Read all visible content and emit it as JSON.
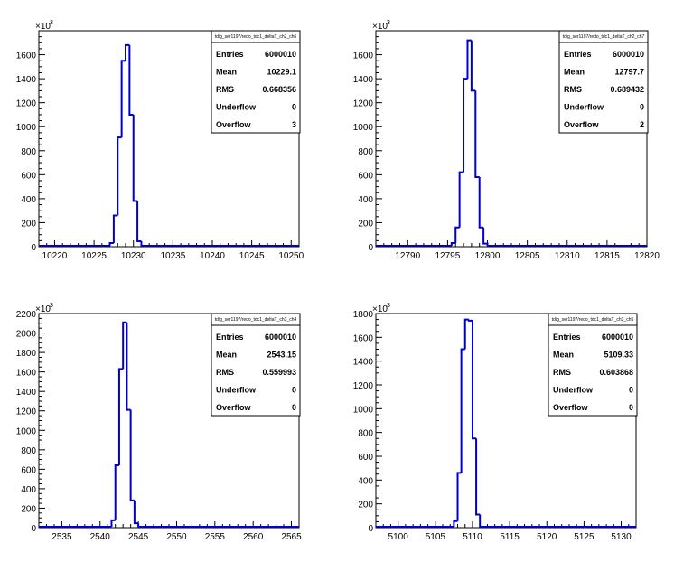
{
  "chart_data": [
    {
      "type": "histogram",
      "stats_title": "tdig_ser1197/redo_tdc1_deltaT_ch2_ch6",
      "y_exponent": "×10",
      "y_exponent_power": "3",
      "xlim": [
        10218,
        10251
      ],
      "ylim": [
        0,
        1800
      ],
      "xticks": [
        10220,
        10225,
        10230,
        10235,
        10240,
        10245,
        10250
      ],
      "xtick_labels": [
        "10220",
        "10225",
        "10230",
        "10235",
        "10240",
        "10245",
        "10250"
      ],
      "yticks": [
        0,
        200,
        400,
        600,
        800,
        1000,
        1200,
        1400,
        1600
      ],
      "ytick_labels": [
        "0",
        "200",
        "400",
        "600",
        "800",
        "1000",
        "1200",
        "1400",
        "1600"
      ],
      "bin_width": 0.5,
      "bins": [
        {
          "x": 10227.0,
          "y": 30
        },
        {
          "x": 10227.5,
          "y": 260
        },
        {
          "x": 10228.0,
          "y": 910
        },
        {
          "x": 10228.5,
          "y": 1550
        },
        {
          "x": 10229.0,
          "y": 1680
        },
        {
          "x": 10229.5,
          "y": 1100
        },
        {
          "x": 10230.0,
          "y": 380
        },
        {
          "x": 10230.5,
          "y": 45
        },
        {
          "x": 10231.0,
          "y": 5
        }
      ],
      "stats": [
        {
          "label": "Entries",
          "value": "6000010"
        },
        {
          "label": "Mean",
          "value": "10229.1"
        },
        {
          "label": "RMS",
          "value": "0.668356"
        },
        {
          "label": "Underflow",
          "value": "0"
        },
        {
          "label": "Overflow",
          "value": "3"
        }
      ],
      "line_color": "#0000cc"
    },
    {
      "type": "histogram",
      "stats_title": "tdig_ser1197/redo_tdc1_deltaT_ch2_ch7",
      "y_exponent": "×10",
      "y_exponent_power": "3",
      "xlim": [
        12786,
        12820
      ],
      "ylim": [
        0,
        1800
      ],
      "xticks": [
        12790,
        12795,
        12800,
        12805,
        12810,
        12815,
        12820
      ],
      "xtick_labels": [
        "12790",
        "12795",
        "12800",
        "12805",
        "12810",
        "12815",
        "12820"
      ],
      "yticks": [
        0,
        200,
        400,
        600,
        800,
        1000,
        1200,
        1400,
        1600
      ],
      "ytick_labels": [
        "0",
        "200",
        "400",
        "600",
        "800",
        "1000",
        "1200",
        "1400",
        "1600"
      ],
      "bin_width": 0.5,
      "bins": [
        {
          "x": 12795.5,
          "y": 30
        },
        {
          "x": 12796.0,
          "y": 160
        },
        {
          "x": 12796.5,
          "y": 620
        },
        {
          "x": 12797.0,
          "y": 1400
        },
        {
          "x": 12797.5,
          "y": 1720
        },
        {
          "x": 12798.0,
          "y": 1300
        },
        {
          "x": 12798.5,
          "y": 580
        },
        {
          "x": 12799.0,
          "y": 160
        },
        {
          "x": 12799.5,
          "y": 25
        }
      ],
      "stats": [
        {
          "label": "Entries",
          "value": "6000010"
        },
        {
          "label": "Mean",
          "value": "12797.7"
        },
        {
          "label": "RMS",
          "value": "0.689432"
        },
        {
          "label": "Underflow",
          "value": "0"
        },
        {
          "label": "Overflow",
          "value": "2"
        }
      ],
      "line_color": "#0000cc"
    },
    {
      "type": "histogram",
      "stats_title": "tdig_ser1197/redo_tdc1_deltaT_ch3_ch4",
      "y_exponent": "×10",
      "y_exponent_power": "3",
      "xlim": [
        2532,
        2566
      ],
      "ylim": [
        0,
        2200
      ],
      "xticks": [
        2535,
        2540,
        2545,
        2550,
        2555,
        2560,
        2565
      ],
      "xtick_labels": [
        "2535",
        "2540",
        "2545",
        "2550",
        "2555",
        "2560",
        "2565"
      ],
      "yticks": [
        0,
        200,
        400,
        600,
        800,
        1000,
        1200,
        1400,
        1600,
        1800,
        2000,
        2200
      ],
      "ytick_labels": [
        "0",
        "200",
        "400",
        "600",
        "800",
        "1000",
        "1200",
        "1400",
        "1600",
        "1800",
        "2000",
        "2200"
      ],
      "bin_width": 0.5,
      "bins": [
        {
          "x": 2541.5,
          "y": 75
        },
        {
          "x": 2542.0,
          "y": 640
        },
        {
          "x": 2542.5,
          "y": 1630
        },
        {
          "x": 2543.0,
          "y": 2110
        },
        {
          "x": 2543.5,
          "y": 1210
        },
        {
          "x": 2544.0,
          "y": 280
        },
        {
          "x": 2544.5,
          "y": 45
        },
        {
          "x": 2545.0,
          "y": 5
        }
      ],
      "stats": [
        {
          "label": "Entries",
          "value": "6000010"
        },
        {
          "label": "Mean",
          "value": "2543.15"
        },
        {
          "label": "RMS",
          "value": "0.559993"
        },
        {
          "label": "Underflow",
          "value": "0"
        },
        {
          "label": "Overflow",
          "value": "0"
        }
      ],
      "line_color": "#0000cc"
    },
    {
      "type": "histogram",
      "stats_title": "tdig_ser1197/redo_tdc1_deltaT_ch3_ch5",
      "y_exponent": "×10",
      "y_exponent_power": "3",
      "xlim": [
        5097,
        5132
      ],
      "ylim": [
        0,
        1800
      ],
      "xticks": [
        5100,
        5105,
        5110,
        5115,
        5120,
        5125,
        5130
      ],
      "xtick_labels": [
        "5100",
        "5105",
        "5110",
        "5115",
        "5120",
        "5125",
        "5130"
      ],
      "yticks": [
        0,
        200,
        400,
        600,
        800,
        1000,
        1200,
        1400,
        1600,
        1800
      ],
      "ytick_labels": [
        "0",
        "200",
        "400",
        "600",
        "800",
        "1000",
        "1200",
        "1400",
        "1600",
        "1800"
      ],
      "bin_width": 0.5,
      "bins": [
        {
          "x": 5107.5,
          "y": 55
        },
        {
          "x": 5108.0,
          "y": 460
        },
        {
          "x": 5108.5,
          "y": 1500
        },
        {
          "x": 5109.0,
          "y": 1750
        },
        {
          "x": 5109.5,
          "y": 1740
        },
        {
          "x": 5110.0,
          "y": 750
        },
        {
          "x": 5110.5,
          "y": 110
        },
        {
          "x": 5111.0,
          "y": 8
        }
      ],
      "stats": [
        {
          "label": "Entries",
          "value": "6000010"
        },
        {
          "label": "Mean",
          "value": "5109.33"
        },
        {
          "label": "RMS",
          "value": "0.603868"
        },
        {
          "label": "Underflow",
          "value": "0"
        },
        {
          "label": "Overflow",
          "value": "0"
        }
      ],
      "line_color": "#0000cc"
    }
  ]
}
